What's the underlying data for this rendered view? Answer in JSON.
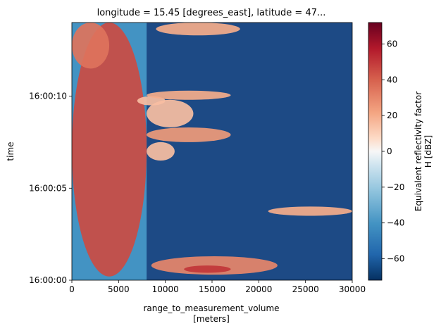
{
  "chart_data": {
    "type": "heatmap",
    "title": "longitude = 15.45 [degrees_east], latitude = 47...",
    "xlabel": "range_to_measurement_volume",
    "xlabel_unit": "[meters]",
    "ylabel": "time",
    "xlim": [
      0,
      30000
    ],
    "ylim": [
      "16:00:00",
      "16:00:14"
    ],
    "x_ticks": [
      0,
      5000,
      10000,
      15000,
      20000,
      25000,
      30000
    ],
    "x_tick_labels": [
      "0",
      "5000",
      "10000",
      "15000",
      "20000",
      "25000",
      "30000"
    ],
    "y_ticks": [
      "16:00:00",
      "16:00:05",
      "16:00:10"
    ],
    "y_tick_labels": [
      "16:00:00",
      "16:00:05",
      "16:00:10"
    ],
    "colorbar": {
      "label_line1": "Equivalent reflectivity factor",
      "label_line2": "H [dBZ]",
      "range": [
        -72,
        72
      ],
      "colormap": "RdBu_r",
      "ticks": [
        -60,
        -40,
        -20,
        0,
        20,
        40,
        60
      ],
      "tick_labels": [
        "−60",
        "−40",
        "−20",
        "0",
        "20",
        "40",
        "60"
      ]
    },
    "background_value": -65,
    "blocked_sector": {
      "x_start": 0,
      "x_end": 8000,
      "value": -40
    },
    "echo_regions": [
      {
        "x_start": 0,
        "x_end": 8000,
        "t_start": 0.2,
        "t_end": 14.0,
        "value": 45
      },
      {
        "x_start": 0,
        "x_end": 4000,
        "t_start": 11.5,
        "t_end": 14.0,
        "value": 35
      },
      {
        "x_start": 7000,
        "x_end": 10000,
        "t_start": 9.5,
        "t_end": 10.0,
        "value": 15
      },
      {
        "x_start": 8000,
        "x_end": 17000,
        "t_start": 9.8,
        "t_end": 10.3,
        "value": 20
      },
      {
        "x_start": 8000,
        "x_end": 13000,
        "t_start": 8.3,
        "t_end": 9.8,
        "value": 15
      },
      {
        "x_start": 8000,
        "x_end": 17000,
        "t_start": 7.5,
        "t_end": 8.3,
        "value": 25
      },
      {
        "x_start": 8000,
        "x_end": 11000,
        "t_start": 6.5,
        "t_end": 7.5,
        "value": 15
      },
      {
        "x_start": 9000,
        "x_end": 18000,
        "t_start": 13.3,
        "t_end": 14.0,
        "value": 20
      },
      {
        "x_start": 21000,
        "x_end": 30000,
        "t_start": 3.5,
        "t_end": 4.0,
        "value": 20
      },
      {
        "x_start": 8500,
        "x_end": 22000,
        "t_start": 0.3,
        "t_end": 1.3,
        "value": 30
      },
      {
        "x_start": 12000,
        "x_end": 17000,
        "t_start": 0.4,
        "t_end": 0.8,
        "value": 50
      }
    ]
  }
}
